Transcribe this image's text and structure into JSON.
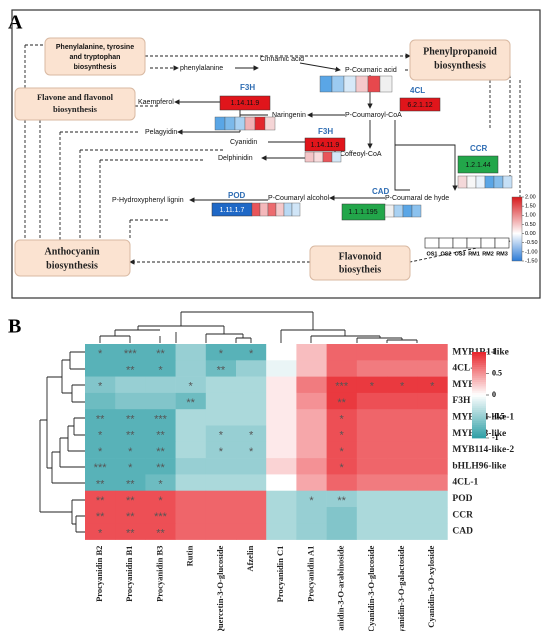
{
  "panel_a": {
    "label": "A",
    "boxes": [
      {
        "lines": [
          "Phenylalanine, tyrosine",
          "and tryptophan",
          "biosynthesis"
        ]
      },
      {
        "lines": [
          "Phenylpropanoid",
          "biosynthesis"
        ]
      },
      {
        "lines": [
          "Flavone and flavonol",
          "biosynthesis"
        ]
      },
      {
        "lines": [
          "Anthocyanin",
          "biosynthesis"
        ]
      },
      {
        "lines": [
          "Flavonoid",
          "biosytheis"
        ]
      }
    ],
    "compounds": [
      "phenylalanine",
      "Cinnamic acid",
      "P-Coumaric acid",
      "Kaempferol",
      "Naringenin",
      "Pelagyidin",
      "P-Coumaroyl-CoA",
      "Cyanidin",
      "Coffeoyl-CoA",
      "Delphinidin",
      "P-Hydroxyphenyl lignin",
      "P-Coumaryl alcohol",
      "P-Coumaral de hyde"
    ],
    "enzymes": [
      {
        "name": "4CL",
        "ec": "6.2.1.12"
      },
      {
        "name": "F3H",
        "ec": "1.14.11.9"
      },
      {
        "name": "F3H",
        "ec": "1.14.11.9"
      },
      {
        "name": "CCR",
        "ec": "1.2.1.44"
      },
      {
        "name": "CAD",
        "ec": "1.1.1.195"
      },
      {
        "name": "POD",
        "ec": "1.11.1.7"
      }
    ],
    "legend": {
      "lim": [
        -1.5,
        2
      ],
      "ticks": [
        {
          "value": 2,
          "label": "2.00"
        },
        {
          "value": 1.5,
          "label": "1.50"
        },
        {
          "value": 1,
          "label": "1.00"
        },
        {
          "value": 0.5,
          "label": "0.50"
        },
        {
          "value": 0,
          "label": "0.00"
        },
        {
          "value": -0.5,
          "label": "-0.50"
        },
        {
          "value": -1,
          "label": "-1.00"
        },
        {
          "value": -1.5,
          "label": "-1.50"
        }
      ],
      "samples": [
        "OS1",
        "OS2",
        "OS3",
        "RM1",
        "RM2",
        "RM3"
      ]
    }
  },
  "chart_data": {
    "type": "heatmap",
    "label": "B",
    "x": [
      "Procyanidin B2",
      "Procyanidin B1",
      "Procyanidin B3",
      "Rutin",
      "Quercetin-3-O-glucoside",
      "Afzelin",
      "Procyanidin C1",
      "Procyanidin A1",
      "Cyanidin-3-O-arabinoside",
      "Cyanidin-3-O-glucoside",
      "Cyanidin-3-O-galactoside",
      "Cyanidin-3-O-xyloside"
    ],
    "y": [
      "MYB1R1-like",
      "4CL-2",
      "MYB66",
      "F3H",
      "MYB114-like-1",
      "MYB113-like",
      "MYB114-like-2",
      "bHLH96-like",
      "4CL-1",
      "POD",
      "CCR",
      "CAD"
    ],
    "values": [
      [
        -0.8,
        -0.8,
        -0.8,
        -0.5,
        -0.8,
        -0.8,
        0.0,
        0.3,
        0.7,
        0.7,
        0.7,
        0.7
      ],
      [
        -0.8,
        -0.8,
        -0.8,
        -0.5,
        -0.7,
        -0.5,
        -0.1,
        0.3,
        0.7,
        0.6,
        0.6,
        0.6
      ],
      [
        -0.6,
        -0.5,
        -0.5,
        -0.5,
        -0.4,
        -0.4,
        0.1,
        0.6,
        0.9,
        0.9,
        0.9,
        0.9
      ],
      [
        -0.7,
        -0.6,
        -0.6,
        -0.7,
        -0.4,
        -0.4,
        0.1,
        0.5,
        0.9,
        0.8,
        0.8,
        0.8
      ],
      [
        -0.8,
        -0.8,
        -0.8,
        -0.4,
        -0.4,
        -0.4,
        0.1,
        0.4,
        0.8,
        0.7,
        0.7,
        0.7
      ],
      [
        -0.8,
        -0.8,
        -0.8,
        -0.4,
        -0.5,
        -0.5,
        0.1,
        0.4,
        0.8,
        0.7,
        0.7,
        0.7
      ],
      [
        -0.8,
        -0.8,
        -0.8,
        -0.4,
        -0.5,
        -0.5,
        0.1,
        0.4,
        0.8,
        0.7,
        0.7,
        0.7
      ],
      [
        -0.8,
        -0.8,
        -0.8,
        -0.5,
        -0.5,
        -0.5,
        0.2,
        0.5,
        0.8,
        0.7,
        0.7,
        0.7
      ],
      [
        -0.8,
        -0.8,
        -0.7,
        -0.4,
        -0.4,
        -0.4,
        0.0,
        0.4,
        0.7,
        0.6,
        0.6,
        0.6
      ],
      [
        0.8,
        0.8,
        0.8,
        0.7,
        0.7,
        0.7,
        -0.4,
        -0.5,
        -0.5,
        -0.4,
        -0.4,
        -0.4
      ],
      [
        0.8,
        0.8,
        0.8,
        0.7,
        0.7,
        0.7,
        -0.4,
        -0.5,
        -0.6,
        -0.4,
        -0.4,
        -0.4
      ],
      [
        0.8,
        0.8,
        0.8,
        0.7,
        0.7,
        0.7,
        -0.4,
        -0.5,
        -0.6,
        -0.4,
        -0.4,
        -0.4
      ]
    ],
    "stars": [
      [
        "*",
        "***",
        "**",
        null,
        "*",
        "*",
        null,
        null,
        null,
        null,
        null,
        null
      ],
      [
        null,
        "**",
        "*",
        null,
        "**",
        null,
        null,
        null,
        null,
        null,
        null,
        null
      ],
      [
        "*",
        null,
        null,
        "*",
        null,
        null,
        null,
        null,
        "***",
        "*",
        "*",
        "*"
      ],
      [
        null,
        null,
        null,
        "**",
        null,
        null,
        null,
        null,
        "**",
        null,
        null,
        null
      ],
      [
        "**",
        "**",
        "***",
        null,
        null,
        null,
        null,
        null,
        "*",
        null,
        null,
        null
      ],
      [
        "*",
        "**",
        "**",
        null,
        "*",
        "*",
        null,
        null,
        "*",
        null,
        null,
        null
      ],
      [
        "*",
        "*",
        "**",
        null,
        "*",
        "*",
        null,
        null,
        "*",
        null,
        null,
        null
      ],
      [
        "***",
        "*",
        "**",
        null,
        null,
        null,
        null,
        null,
        "*",
        null,
        null,
        null
      ],
      [
        "**",
        "**",
        "*",
        null,
        null,
        null,
        null,
        null,
        null,
        null,
        null,
        null
      ],
      [
        "**",
        "**",
        "*",
        null,
        null,
        null,
        null,
        "*",
        "**",
        null,
        null,
        null
      ],
      [
        "**",
        "**",
        "***",
        null,
        null,
        null,
        null,
        null,
        null,
        null,
        null,
        null
      ],
      [
        "*",
        "**",
        "**",
        null,
        null,
        null,
        null,
        null,
        null,
        null,
        null,
        null
      ]
    ],
    "colorbar": {
      "lim": [
        -1,
        1
      ],
      "ticks": [
        1,
        0.5,
        0,
        -0.5,
        -1
      ],
      "colors": [
        "#2e9fa6",
        "#ffffff",
        "#e8232a"
      ]
    }
  }
}
